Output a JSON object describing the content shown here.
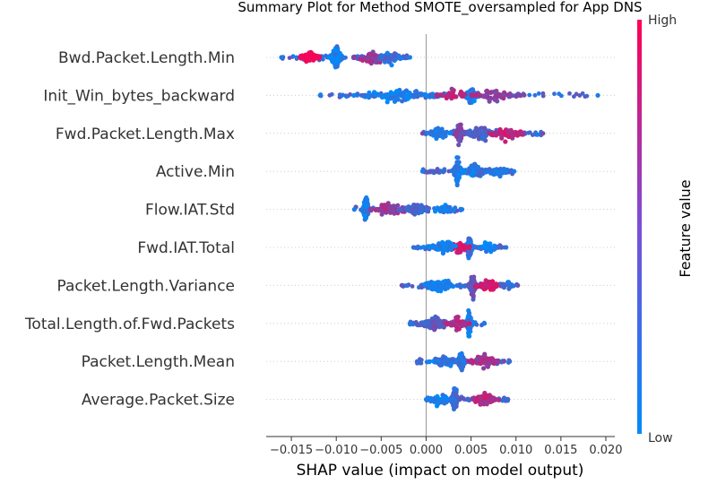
{
  "chart_data": {
    "type": "scatter",
    "subtype": "shap-beeswarm",
    "title": "Summary Plot for Method SMOTE_oversampled for App DNS",
    "xlabel": "SHAP value (impact on model output)",
    "xlim": [
      -0.0178,
      0.021
    ],
    "xticks": [
      -0.015,
      -0.01,
      -0.005,
      0.0,
      0.005,
      0.01,
      0.015,
      0.02
    ],
    "xtick_labels": [
      "−0.015",
      "−0.010",
      "−0.005",
      "0.000",
      "0.005",
      "0.010",
      "0.015",
      "0.020"
    ],
    "zero_line": true,
    "colorbar": {
      "label": "Feature value",
      "high_label": "High",
      "low_label": "Low",
      "low_color": "#008bfb",
      "high_color": "#ff0051"
    },
    "features": [
      {
        "name": "Bwd.Packet.Length.Min",
        "range": [
          -0.0161,
          -0.0018
        ],
        "clusters": [
          {
            "x": -0.01,
            "w": 0.0006,
            "color": 0.1,
            "n": 140
          },
          {
            "x": -0.013,
            "w": 0.0012,
            "color": 0.9,
            "n": 50
          },
          {
            "x": -0.006,
            "w": 0.002,
            "color": 0.6,
            "n": 60
          },
          {
            "x": -0.004,
            "w": 0.0015,
            "color": 0.2,
            "n": 40
          }
        ]
      },
      {
        "name": "Init_Win_bytes_backward",
        "range": [
          -0.0118,
          0.0191
        ],
        "clusters": [
          {
            "x": 0.005,
            "w": 0.0008,
            "color": 0.1,
            "n": 120
          },
          {
            "x": -0.003,
            "w": 0.005,
            "color": 0.1,
            "n": 110
          },
          {
            "x": 0.0075,
            "w": 0.0025,
            "color": 0.55,
            "n": 60
          },
          {
            "x": 0.003,
            "w": 0.002,
            "color": 0.7,
            "n": 30
          }
        ]
      },
      {
        "name": "Fwd.Packet.Length.Max",
        "range": [
          -0.0004,
          0.013
        ],
        "clusters": [
          {
            "x": 0.0037,
            "w": 0.0004,
            "color": 0.5,
            "n": 110
          },
          {
            "x": 0.006,
            "w": 0.002,
            "color": 0.3,
            "n": 90
          },
          {
            "x": 0.009,
            "w": 0.002,
            "color": 0.75,
            "n": 50
          },
          {
            "x": 0.0015,
            "w": 0.0012,
            "color": 0.1,
            "n": 40
          }
        ]
      },
      {
        "name": "Active.Min",
        "range": [
          -0.0004,
          0.0098
        ],
        "clusters": [
          {
            "x": 0.0035,
            "w": 0.0005,
            "color": 0.1,
            "n": 130
          },
          {
            "x": 0.0055,
            "w": 0.0015,
            "color": 0.15,
            "n": 90
          },
          {
            "x": 0.008,
            "w": 0.0012,
            "color": 0.2,
            "n": 40
          }
        ]
      },
      {
        "name": "Flow.IAT.Std",
        "range": [
          -0.008,
          0.004
        ],
        "clusters": [
          {
            "x": -0.0067,
            "w": 0.0004,
            "color": 0.1,
            "n": 130
          },
          {
            "x": -0.004,
            "w": 0.002,
            "color": 0.6,
            "n": 60
          },
          {
            "x": -0.001,
            "w": 0.0015,
            "color": 0.25,
            "n": 50
          },
          {
            "x": 0.002,
            "w": 0.0012,
            "color": 0.1,
            "n": 30
          }
        ]
      },
      {
        "name": "Fwd.IAT.Total",
        "range": [
          -0.0014,
          0.0089
        ],
        "clusters": [
          {
            "x": 0.0048,
            "w": 0.0004,
            "color": 0.2,
            "n": 120
          },
          {
            "x": 0.0035,
            "w": 0.0012,
            "color": 0.85,
            "n": 50
          },
          {
            "x": 0.002,
            "w": 0.0015,
            "color": 0.1,
            "n": 50
          },
          {
            "x": 0.007,
            "w": 0.0012,
            "color": 0.1,
            "n": 30
          }
        ]
      },
      {
        "name": "Packet.Length.Variance",
        "range": [
          -0.0027,
          0.0102
        ],
        "clusters": [
          {
            "x": 0.0052,
            "w": 0.0004,
            "color": 0.4,
            "n": 110
          },
          {
            "x": 0.0015,
            "w": 0.002,
            "color": 0.1,
            "n": 80
          },
          {
            "x": 0.007,
            "w": 0.0015,
            "color": 0.85,
            "n": 60
          },
          {
            "x": 0.009,
            "w": 0.0008,
            "color": 0.2,
            "n": 20
          }
        ]
      },
      {
        "name": "Total.Length.of.Fwd.Packets",
        "range": [
          -0.0018,
          0.0065
        ],
        "clusters": [
          {
            "x": 0.0048,
            "w": 0.0004,
            "color": 0.15,
            "n": 120
          },
          {
            "x": 0.001,
            "w": 0.0018,
            "color": 0.35,
            "n": 80
          },
          {
            "x": 0.0035,
            "w": 0.001,
            "color": 0.7,
            "n": 40
          }
        ]
      },
      {
        "name": "Packet.Length.Mean",
        "range": [
          -0.001,
          0.0093
        ],
        "clusters": [
          {
            "x": 0.0039,
            "w": 0.0004,
            "color": 0.2,
            "n": 120
          },
          {
            "x": 0.002,
            "w": 0.0015,
            "color": 0.15,
            "n": 60
          },
          {
            "x": 0.0065,
            "w": 0.0018,
            "color": 0.6,
            "n": 60
          }
        ]
      },
      {
        "name": "Average.Packet.Size",
        "range": [
          0.0,
          0.0091
        ],
        "clusters": [
          {
            "x": 0.0032,
            "w": 0.0004,
            "color": 0.25,
            "n": 110
          },
          {
            "x": 0.0015,
            "w": 0.0012,
            "color": 0.1,
            "n": 50
          },
          {
            "x": 0.0065,
            "w": 0.0015,
            "color": 0.7,
            "n": 60
          }
        ]
      }
    ]
  }
}
